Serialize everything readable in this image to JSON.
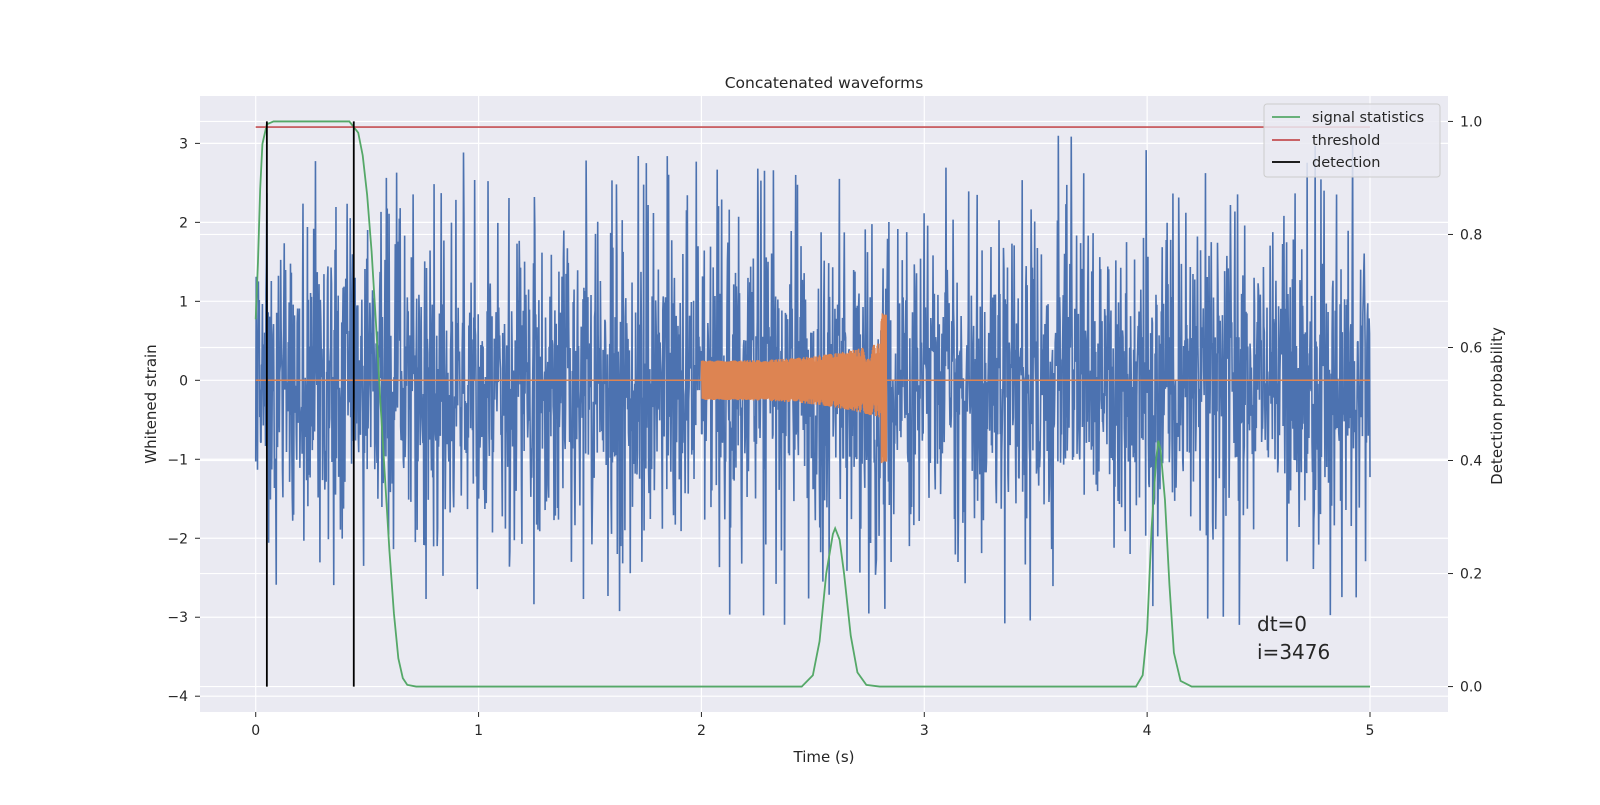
{
  "chart_data": {
    "type": "line",
    "title": "Concatenated waveforms",
    "xlabel": "Time (s)",
    "ylabel": "Whitened strain",
    "ylabel_right": "Detection probability",
    "xlim": [
      -0.25,
      5.35
    ],
    "ylim": [
      -4.2,
      3.6
    ],
    "ylim_right": [
      -0.045,
      1.045
    ],
    "x_ticks": [
      0,
      1,
      2,
      3,
      4,
      5
    ],
    "y_ticks": [
      -4,
      -3,
      -2,
      -1,
      0,
      1,
      2,
      3
    ],
    "y_right_ticks": [
      0.0,
      0.2,
      0.4,
      0.6,
      0.8,
      1.0
    ],
    "x_tick_labels": [
      "0",
      "1",
      "2",
      "3",
      "4",
      "5"
    ],
    "y_tick_labels": [
      "−4",
      "−3",
      "−2",
      "−1",
      "0",
      "1",
      "2",
      "3"
    ],
    "y_right_tick_labels": [
      "0.0",
      "0.2",
      "0.4",
      "0.6",
      "0.8",
      "1.0"
    ],
    "grid": true,
    "legend_position": "top-right",
    "colors": {
      "background": "#eaeaf2",
      "strain": "#4c72b0",
      "injection": "#dd8452",
      "signal_statistics": "#55a868",
      "threshold": "#c44e52",
      "detection": "#000000"
    },
    "series": [
      {
        "name": "",
        "axis": "left",
        "kind": "noise",
        "x_range": [
          0,
          5
        ],
        "n_points": 2500,
        "typical_range": [
          -1.8,
          1.8
        ],
        "extreme_range": [
          -3.8,
          3.25
        ]
      },
      {
        "name": "",
        "axis": "left",
        "kind": "chirp",
        "x_range": [
          0,
          5
        ],
        "chirp_x_range": [
          2.0,
          2.83
        ],
        "amplitude_start": 0.25,
        "amplitude_peak": [
          0.85,
          -1.05
        ]
      },
      {
        "name": "signal statistics",
        "axis": "right",
        "points": [
          [
            0.0,
            0.65
          ],
          [
            0.01,
            0.75
          ],
          [
            0.02,
            0.88
          ],
          [
            0.03,
            0.96
          ],
          [
            0.05,
            0.995
          ],
          [
            0.08,
            1.0
          ],
          [
            0.42,
            1.0
          ],
          [
            0.46,
            0.98
          ],
          [
            0.48,
            0.94
          ],
          [
            0.5,
            0.87
          ],
          [
            0.52,
            0.77
          ],
          [
            0.54,
            0.64
          ],
          [
            0.56,
            0.5
          ],
          [
            0.58,
            0.37
          ],
          [
            0.6,
            0.24
          ],
          [
            0.62,
            0.13
          ],
          [
            0.64,
            0.05
          ],
          [
            0.66,
            0.015
          ],
          [
            0.68,
            0.003
          ],
          [
            0.72,
            0.0
          ],
          [
            2.45,
            0.0
          ],
          [
            2.5,
            0.02
          ],
          [
            2.53,
            0.08
          ],
          [
            2.56,
            0.2
          ],
          [
            2.59,
            0.27
          ],
          [
            2.6,
            0.28
          ],
          [
            2.62,
            0.26
          ],
          [
            2.64,
            0.2
          ],
          [
            2.67,
            0.09
          ],
          [
            2.7,
            0.025
          ],
          [
            2.74,
            0.003
          ],
          [
            2.8,
            0.0
          ],
          [
            3.95,
            0.0
          ],
          [
            3.98,
            0.02
          ],
          [
            4.0,
            0.1
          ],
          [
            4.02,
            0.28
          ],
          [
            4.04,
            0.4
          ],
          [
            4.05,
            0.435
          ],
          [
            4.06,
            0.42
          ],
          [
            4.08,
            0.33
          ],
          [
            4.1,
            0.18
          ],
          [
            4.12,
            0.06
          ],
          [
            4.15,
            0.01
          ],
          [
            4.2,
            0.0
          ],
          [
            5.0,
            0.0
          ]
        ]
      },
      {
        "name": "threshold",
        "axis": "right",
        "points": [
          [
            0.0,
            0.99
          ],
          [
            5.0,
            0.99
          ]
        ]
      }
    ],
    "detections": {
      "name": "detection",
      "x": [
        0.05,
        0.44
      ],
      "y_range_right": [
        0.0,
        1.0
      ]
    },
    "legend": [
      {
        "label": "signal statistics",
        "color": "#55a868"
      },
      {
        "label": "threshold",
        "color": "#c44e52"
      },
      {
        "label": "detection",
        "color": "#000000"
      }
    ],
    "annotations": [
      {
        "text": "dt=0",
        "x": 4.5,
        "y": -3.2
      },
      {
        "text": "i=3476",
        "x": 4.5,
        "y": -3.52
      }
    ]
  }
}
